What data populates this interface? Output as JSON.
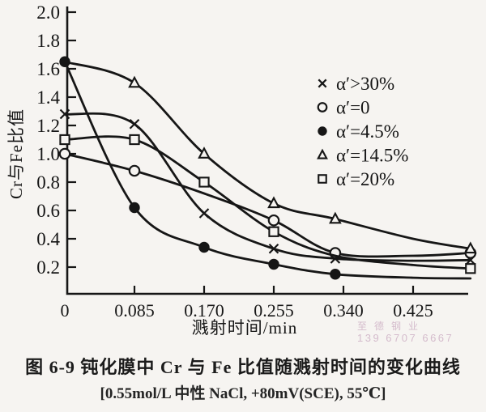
{
  "figure": {
    "caption": "图 6-9  钝化膜中 Cr 与 Fe 比值随溅射时间的变化曲线",
    "conditions": "[0.55mol/L 中性 NaCl, +80mV(SCE), 55℃]"
  },
  "watermark": {
    "company": "至德钢业",
    "phone": "139 6707 6667",
    "color": "#cfb2c6"
  },
  "chart_data": {
    "type": "line",
    "title": "",
    "xlabel": "溅射时间/min",
    "ylabel": "Cr与Fe比值",
    "xlim": [
      0,
      0.51
    ],
    "ylim": [
      0,
      2.0
    ],
    "x_ticks": [
      0,
      0.085,
      0.17,
      0.255,
      0.34,
      0.425
    ],
    "x_tick_labels": [
      "0",
      "0.085",
      "0.170",
      "0.255",
      "0.340",
      "0.425"
    ],
    "y_ticks": [
      0.2,
      0.4,
      0.6,
      0.8,
      1.0,
      1.2,
      1.4,
      1.6,
      1.8,
      2.0
    ],
    "y_tick_labels": [
      "0.2",
      "0.4",
      "0.6",
      "0.8",
      "1.0",
      "1.2",
      "1.4",
      "1.6",
      "1.8",
      "2.0"
    ],
    "grid": false,
    "line_color": "#161616",
    "legend_position": "inside-right-upper",
    "series": [
      {
        "name": "α′>30%",
        "marker": "cross",
        "points": [
          [
            0,
            1.28
          ],
          [
            0.085,
            1.21
          ],
          [
            0.17,
            0.58
          ],
          [
            0.255,
            0.33
          ],
          [
            0.33,
            0.26
          ],
          [
            0.425,
            0.245
          ],
          [
            0.495,
            0.25
          ]
        ],
        "marker_indices": [
          0,
          1,
          2,
          3,
          4,
          6
        ]
      },
      {
        "name": "α′=0",
        "marker": "circle",
        "points": [
          [
            0,
            1.0
          ],
          [
            0.085,
            0.88
          ],
          [
            0.17,
            0.72
          ],
          [
            0.255,
            0.53
          ],
          [
            0.33,
            0.3
          ],
          [
            0.425,
            0.28
          ],
          [
            0.495,
            0.3
          ]
        ],
        "marker_indices": [
          0,
          1,
          3,
          4,
          6
        ]
      },
      {
        "name": "α′=4.5%",
        "marker": "dot",
        "points": [
          [
            0,
            1.65
          ],
          [
            0.085,
            0.62
          ],
          [
            0.17,
            0.34
          ],
          [
            0.255,
            0.22
          ],
          [
            0.33,
            0.15
          ],
          [
            0.425,
            0.125
          ],
          [
            0.495,
            0.12
          ]
        ],
        "marker_indices": [
          0,
          1,
          2,
          3,
          4
        ]
      },
      {
        "name": "α′=14.5%",
        "marker": "triangle",
        "points": [
          [
            0,
            1.65
          ],
          [
            0.085,
            1.5
          ],
          [
            0.17,
            1.0
          ],
          [
            0.255,
            0.65
          ],
          [
            0.33,
            0.54
          ],
          [
            0.425,
            0.4
          ],
          [
            0.495,
            0.33
          ]
        ],
        "marker_indices": [
          1,
          2,
          3,
          4,
          6
        ]
      },
      {
        "name": "α′=20%",
        "marker": "square",
        "points": [
          [
            0,
            1.1
          ],
          [
            0.085,
            1.1
          ],
          [
            0.17,
            0.8
          ],
          [
            0.255,
            0.45
          ],
          [
            0.33,
            0.28
          ],
          [
            0.425,
            0.215
          ],
          [
            0.495,
            0.19
          ]
        ],
        "marker_indices": [
          0,
          1,
          2,
          3,
          6
        ]
      }
    ]
  }
}
